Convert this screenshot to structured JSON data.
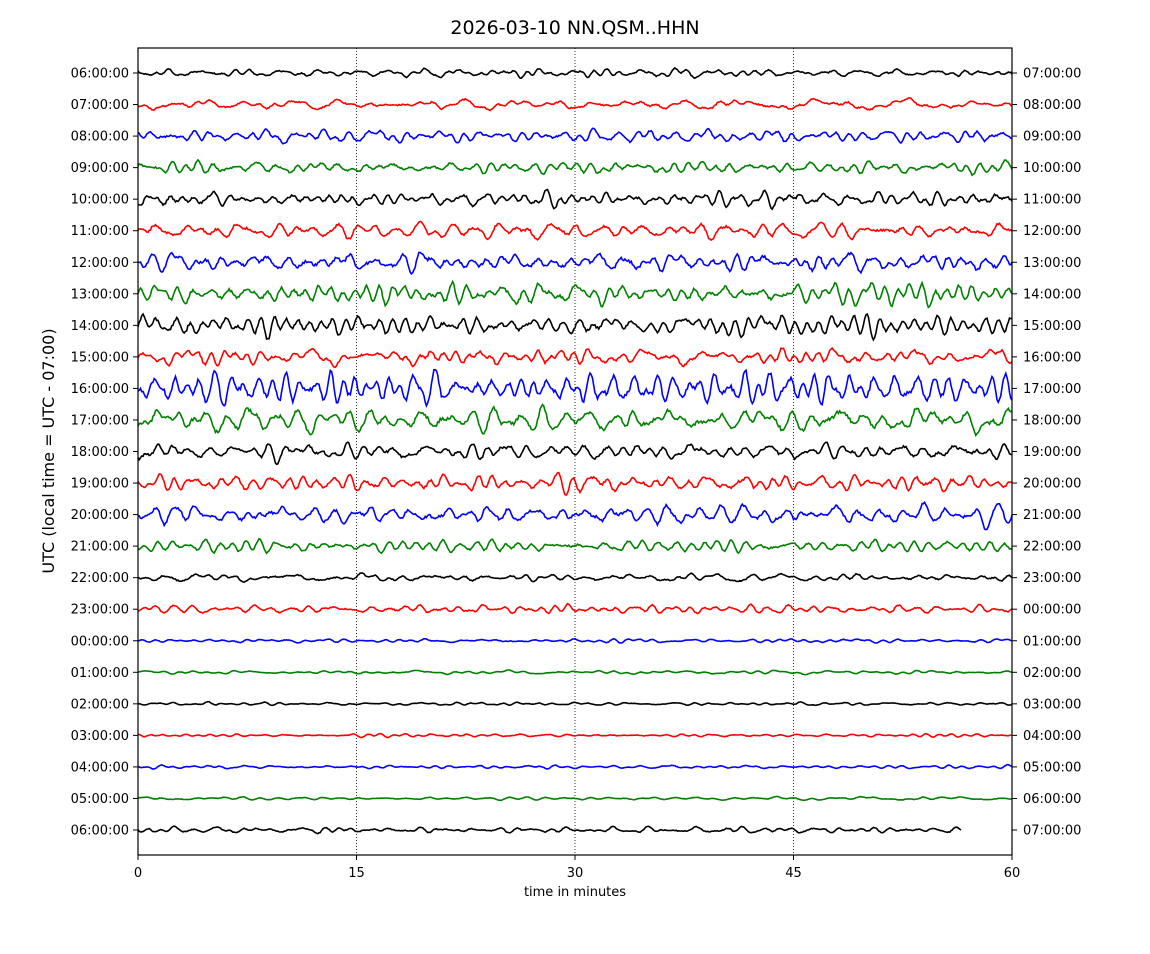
{
  "chart_data": {
    "type": "line",
    "subtype": "helicorder",
    "title": "2026-03-10 NN.QSM..HHN",
    "xlabel": "time in minutes",
    "ylabel": "UTC (local time = UTC - 07:00)",
    "xlim": [
      0,
      60
    ],
    "x_ticks": [
      "0",
      "15",
      "30",
      "45",
      "60"
    ],
    "x_tick_values": [
      0,
      15,
      30,
      45,
      60
    ],
    "grid": "vertical dotted at 15, 30, 45",
    "colors": [
      "#000000",
      "#ff0000",
      "#0000ff",
      "#008000"
    ],
    "left_labels": [
      "06:00:00",
      "07:00:00",
      "08:00:00",
      "09:00:00",
      "10:00:00",
      "11:00:00",
      "12:00:00",
      "13:00:00",
      "14:00:00",
      "15:00:00",
      "16:00:00",
      "17:00:00",
      "18:00:00",
      "19:00:00",
      "20:00:00",
      "21:00:00",
      "22:00:00",
      "23:00:00",
      "00:00:00",
      "01:00:00",
      "02:00:00",
      "03:00:00",
      "04:00:00",
      "05:00:00",
      "06:00:00"
    ],
    "right_labels": [
      "07:00:00",
      "08:00:00",
      "09:00:00",
      "10:00:00",
      "11:00:00",
      "12:00:00",
      "13:00:00",
      "14:00:00",
      "15:00:00",
      "16:00:00",
      "17:00:00",
      "18:00:00",
      "19:00:00",
      "20:00:00",
      "21:00:00",
      "22:00:00",
      "23:00:00",
      "00:00:00",
      "01:00:00",
      "02:00:00",
      "03:00:00",
      "04:00:00",
      "05:00:00",
      "06:00:00",
      "07:00:00"
    ],
    "relative_amplitude": [
      0.13,
      0.16,
      0.19,
      0.19,
      0.22,
      0.26,
      0.32,
      0.32,
      0.29,
      0.26,
      0.48,
      0.38,
      0.26,
      0.26,
      0.29,
      0.19,
      0.13,
      0.13,
      0.06,
      0.05,
      0.05,
      0.05,
      0.05,
      0.05,
      0.1
    ],
    "trace_end_minutes": [
      60,
      60,
      60,
      60,
      60,
      60,
      60,
      60,
      60,
      60,
      60,
      60,
      60,
      60,
      60,
      60,
      60,
      60,
      60,
      60,
      60,
      60,
      60,
      60,
      56.5
    ]
  }
}
